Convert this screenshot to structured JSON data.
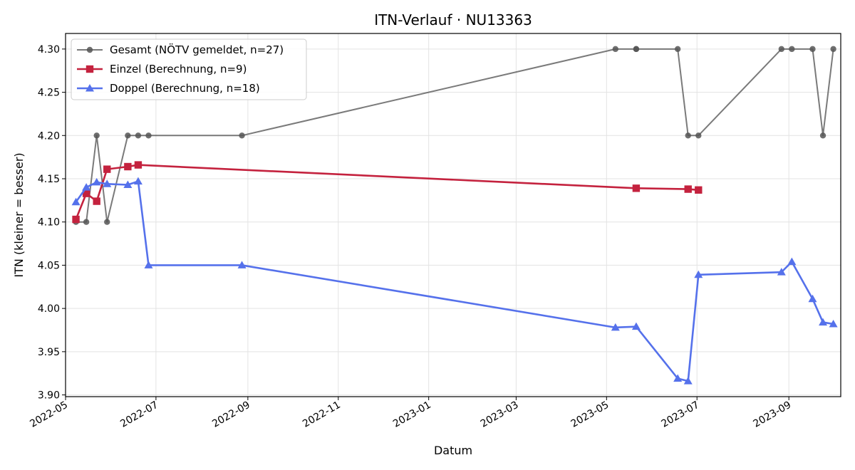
{
  "chart_data": {
    "type": "line",
    "title": "ITN-Verlauf · NU13363",
    "xlabel": "Datum",
    "ylabel": "ITN  (kleiner = besser)",
    "ylim": [
      3.898,
      4.318
    ],
    "xlim": [
      "2022-05-01",
      "2023-10-06"
    ],
    "y_ticks": [
      "3.90",
      "3.95",
      "4.00",
      "4.05",
      "4.10",
      "4.15",
      "4.20",
      "4.25",
      "4.30"
    ],
    "x_ticks": [
      "2022-05",
      "2022-07",
      "2022-09",
      "2022-11",
      "2023-01",
      "2023-03",
      "2023-05",
      "2023-07",
      "2023-09"
    ],
    "grid": true,
    "legend_position": "top-left",
    "series": [
      {
        "name": "Gesamt (NÖTV gemeldet, n=27)",
        "color": "#555555",
        "marker": "circle",
        "points": [
          [
            "2022-05-08",
            4.1
          ],
          [
            "2022-05-15",
            4.1
          ],
          [
            "2022-05-22",
            4.2
          ],
          [
            "2022-05-29",
            4.1
          ],
          [
            "2022-06-12",
            4.2
          ],
          [
            "2022-06-19",
            4.2
          ],
          [
            "2022-06-26",
            4.2
          ],
          [
            "2022-08-28",
            4.2
          ],
          [
            "2023-05-07",
            4.3
          ],
          [
            "2023-05-21",
            4.3
          ],
          [
            "2023-05-21",
            4.3
          ],
          [
            "2023-06-18",
            4.3
          ],
          [
            "2023-06-25",
            4.2
          ],
          [
            "2023-07-02",
            4.2
          ],
          [
            "2023-08-27",
            4.3
          ],
          [
            "2023-09-03",
            4.3
          ],
          [
            "2023-09-17",
            4.3
          ],
          [
            "2023-09-24",
            4.2
          ],
          [
            "2023-10-01",
            4.3
          ]
        ]
      },
      {
        "name": "Einzel (Berechnung, n=9)",
        "color": "#c4223e",
        "marker": "square",
        "points": [
          [
            "2022-05-08",
            4.103
          ],
          [
            "2022-05-15",
            4.133
          ],
          [
            "2022-05-22",
            4.124
          ],
          [
            "2022-05-29",
            4.161
          ],
          [
            "2022-06-12",
            4.164
          ],
          [
            "2022-06-19",
            4.166
          ],
          [
            "2023-05-21",
            4.139
          ],
          [
            "2023-06-25",
            4.138
          ],
          [
            "2023-07-02",
            4.137
          ]
        ]
      },
      {
        "name": "Doppel (Berechnung, n=18)",
        "color": "#5571eb",
        "marker": "triangle",
        "points": [
          [
            "2022-05-08",
            4.123
          ],
          [
            "2022-05-15",
            4.14
          ],
          [
            "2022-05-22",
            4.146
          ],
          [
            "2022-05-29",
            4.144
          ],
          [
            "2022-06-12",
            4.143
          ],
          [
            "2022-06-19",
            4.147
          ],
          [
            "2022-06-26",
            4.05
          ],
          [
            "2022-08-28",
            4.05
          ],
          [
            "2023-05-07",
            3.978
          ],
          [
            "2023-05-21",
            3.979
          ],
          [
            "2023-06-18",
            3.919
          ],
          [
            "2023-06-25",
            3.916
          ],
          [
            "2023-07-02",
            4.039
          ],
          [
            "2023-08-27",
            4.042
          ],
          [
            "2023-09-03",
            4.054
          ],
          [
            "2023-09-17",
            4.011
          ],
          [
            "2023-09-24",
            3.984
          ],
          [
            "2023-10-01",
            3.982
          ]
        ]
      }
    ]
  }
}
